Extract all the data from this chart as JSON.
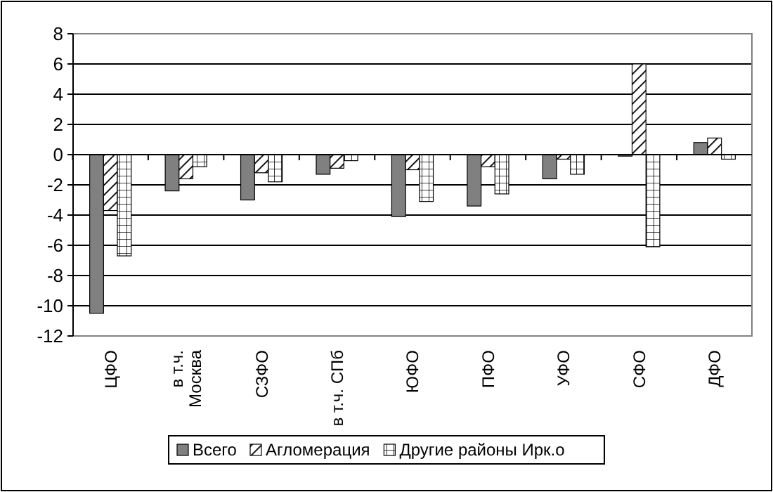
{
  "chart_data": {
    "type": "bar",
    "categories": [
      "ЦФО",
      "в т.ч. Москва",
      "СЗФО",
      "в т.ч. СПб",
      "ЮФО",
      "ПФО",
      "УФО",
      "СФО",
      "ДФО"
    ],
    "series": [
      {
        "name": "Всего",
        "color": "#808080",
        "values": [
          -10.5,
          -2.4,
          -3.0,
          -1.3,
          -4.1,
          -3.4,
          -1.6,
          -0.1,
          0.8
        ]
      },
      {
        "name": "Агломерация",
        "color": "#000000",
        "values": [
          -3.7,
          -1.6,
          -1.2,
          -0.9,
          -1.0,
          -0.8,
          -0.3,
          6.0,
          1.1
        ]
      },
      {
        "name": "Другие районы Ирк.о",
        "color": "#000000",
        "values": [
          -6.7,
          -0.8,
          -1.8,
          -0.4,
          -3.1,
          -2.6,
          -1.3,
          -6.1,
          -0.3
        ]
      }
    ],
    "ylim": [
      -12,
      8
    ],
    "yticks": [
      -12,
      -10,
      -8,
      -6,
      -4,
      -2,
      0,
      2,
      4,
      6,
      8
    ],
    "grid": "y",
    "legend": "bottom"
  }
}
